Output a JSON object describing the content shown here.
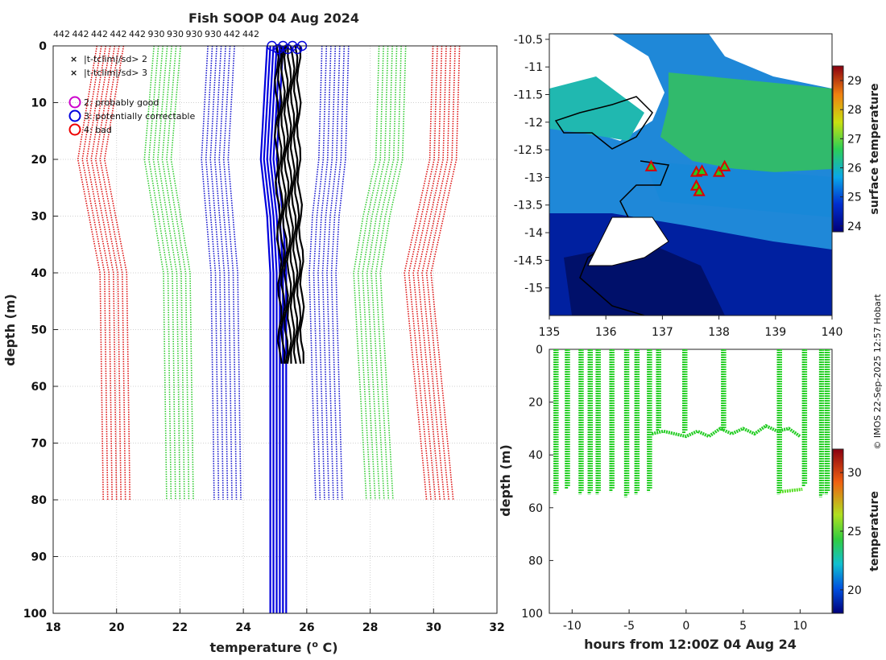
{
  "chart_data": [
    {
      "type": "line",
      "name": "profiles",
      "title": "Fish SOOP 04 Aug 2024",
      "xlabel": "temperature (",
      "xlabel_sup": "o",
      "xlabel_end": " C)",
      "ylabel": "depth (m)",
      "xlim": [
        18,
        32
      ],
      "ylim": [
        0,
        100
      ],
      "y_inverted": true,
      "grid": true,
      "xticks": [
        18,
        20,
        22,
        24,
        26,
        28,
        30,
        32
      ],
      "yticks": [
        0,
        10,
        20,
        30,
        40,
        50,
        60,
        70,
        80,
        90,
        100
      ],
      "top_labels": [
        "442",
        "442",
        "442",
        "442",
        "442",
        "930",
        "930",
        "930",
        "930",
        "442",
        "442"
      ],
      "legend": [
        {
          "label": "|t-tclim|/sd> 2",
          "marker": "x",
          "color": "#22cc22"
        },
        {
          "label": "|t-tclim|/sd> 3",
          "marker": "x",
          "color": "#dd0000"
        },
        {
          "label": "2: probably good",
          "marker": "o",
          "color": "#cc00cc"
        },
        {
          "label": "3: potentially correctable",
          "marker": "o",
          "color": "#0000dd"
        },
        {
          "label": "4: bad",
          "marker": "o",
          "color": "#ee0000"
        }
      ],
      "series": [
        {
          "name": "clim -3sd",
          "color": "#dd1111",
          "style": "dotted",
          "center": [
            [
              0,
              19.8
            ],
            [
              20,
              19.2
            ],
            [
              40,
              19.9
            ],
            [
              80,
              20.0
            ]
          ]
        },
        {
          "name": "clim -2sd",
          "color": "#33cc33",
          "style": "dotted",
          "center": [
            [
              0,
              21.6
            ],
            [
              20,
              21.3
            ],
            [
              40,
              21.9
            ],
            [
              80,
              22.0
            ]
          ]
        },
        {
          "name": "clim -1sd",
          "color": "#1111cc",
          "style": "dotted",
          "center": [
            [
              0,
              23.3
            ],
            [
              20,
              23.1
            ],
            [
              40,
              23.4
            ],
            [
              80,
              23.5
            ]
          ]
        },
        {
          "name": "clim +1sd",
          "color": "#1111cc",
          "style": "dotted",
          "center": [
            [
              0,
              26.9
            ],
            [
              20,
              26.8
            ],
            [
              30,
              26.6
            ],
            [
              40,
              26.5
            ],
            [
              80,
              26.7
            ]
          ]
        },
        {
          "name": "clim +2sd",
          "color": "#33cc33",
          "style": "dotted",
          "center": [
            [
              0,
              28.7
            ],
            [
              20,
              28.6
            ],
            [
              30,
              28.2
            ],
            [
              40,
              27.9
            ],
            [
              80,
              28.3
            ]
          ]
        },
        {
          "name": "clim +3sd",
          "color": "#dd1111",
          "style": "dotted",
          "center": [
            [
              0,
              30.4
            ],
            [
              20,
              30.3
            ],
            [
              30,
              29.9
            ],
            [
              40,
              29.5
            ],
            [
              80,
              30.2
            ]
          ]
        },
        {
          "name": "blue profiles",
          "color": "#0000dd",
          "style": "solid",
          "center": [
            [
              0,
              25.0
            ],
            [
              20,
              24.8
            ],
            [
              30,
              25.0
            ],
            [
              40,
              25.1
            ],
            [
              100,
              25.1
            ]
          ]
        },
        {
          "name": "black profiles",
          "color": "#000000",
          "style": "solid",
          "center": [
            [
              0,
              25.4
            ],
            [
              20,
              25.4
            ],
            [
              40,
              25.5
            ],
            [
              57,
              25.5
            ]
          ]
        }
      ]
    },
    {
      "type": "heatmap",
      "name": "sst_map",
      "xlim": [
        135,
        140
      ],
      "ylim": [
        -15.5,
        -10.4
      ],
      "xticks": [
        135,
        136,
        137,
        138,
        139,
        140
      ],
      "yticks": [
        -10.5,
        -11,
        -11.5,
        -12,
        -12.5,
        -13,
        -13.5,
        -14,
        -14.5,
        -15
      ],
      "colorbar_label": "surface temperature",
      "colorbar_range": [
        23.8,
        29.5
      ],
      "colorbar_ticks": [
        24,
        25,
        26,
        27,
        28,
        29
      ],
      "stations": [
        [
          136.8,
          -12.8
        ],
        [
          137.6,
          -12.9
        ],
        [
          137.7,
          -12.88
        ],
        [
          137.6,
          -13.15
        ],
        [
          137.65,
          -13.25
        ],
        [
          138.0,
          -12.9
        ],
        [
          138.1,
          -12.8
        ]
      ]
    },
    {
      "type": "scatter",
      "name": "depth_time",
      "xlabel": "hours from 12:00Z 04 Aug 24",
      "ylabel": "depth (m)",
      "xlim": [
        -12,
        12.8
      ],
      "ylim": [
        0,
        100
      ],
      "y_inverted": true,
      "xticks": [
        -10,
        -5,
        0,
        5,
        10
      ],
      "yticks": [
        0,
        20,
        40,
        60,
        80,
        100
      ],
      "colorbar_label": "temperature",
      "colorbar_range": [
        18,
        32
      ],
      "colorbar_ticks": [
        20,
        25,
        30
      ],
      "casts": [
        [
          -11.5,
          55
        ],
        [
          -10.5,
          53
        ],
        [
          -9.3,
          55
        ],
        [
          -8.5,
          55
        ],
        [
          -7.8,
          55
        ],
        [
          -6.6,
          54
        ],
        [
          -5.3,
          56
        ],
        [
          -4.4,
          55
        ],
        [
          -3.3,
          54
        ],
        [
          -2.5,
          31
        ],
        [
          -0.2,
          32
        ],
        [
          3.2,
          31
        ],
        [
          8.1,
          55
        ],
        [
          10.3,
          52
        ],
        [
          11.8,
          56
        ],
        [
          12.3,
          55
        ]
      ],
      "path": [
        [
          -3.0,
          32
        ],
        [
          -2.0,
          31
        ],
        [
          -1.0,
          32
        ],
        [
          0.0,
          33
        ],
        [
          1.0,
          31
        ],
        [
          2.0,
          33
        ],
        [
          3.0,
          30
        ],
        [
          4.0,
          32
        ],
        [
          5.0,
          30
        ],
        [
          6.0,
          32
        ],
        [
          7.0,
          29
        ],
        [
          8.0,
          31
        ],
        [
          9.0,
          30
        ],
        [
          10.0,
          33
        ]
      ],
      "deep_segment": [
        [
          8.2,
          54
        ],
        [
          10.2,
          53
        ]
      ]
    }
  ],
  "watermark": "© IMOS 22-Sep-2025 12:57 Hobart"
}
